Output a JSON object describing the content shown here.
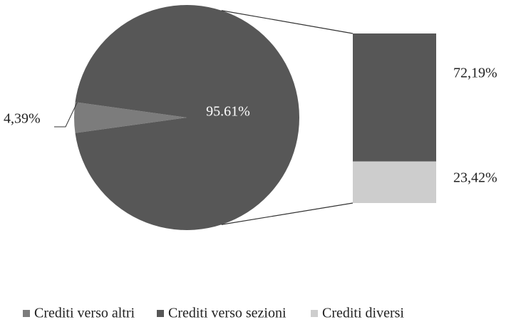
{
  "chart_data": {
    "type": "bar_of_pie",
    "categories": [
      "Crediti verso altri",
      "Crediti verso sezioni",
      "Crediti diversi"
    ],
    "values": [
      4.39,
      72.19,
      23.42
    ],
    "value_labels": [
      "4,39%",
      "72,19%",
      "23,42%"
    ],
    "colors": [
      "#7c7c7c",
      "#575757",
      "#cdcdcd"
    ],
    "combined_value": 95.61,
    "combined_label": "95.61%",
    "legend": "bottom"
  }
}
